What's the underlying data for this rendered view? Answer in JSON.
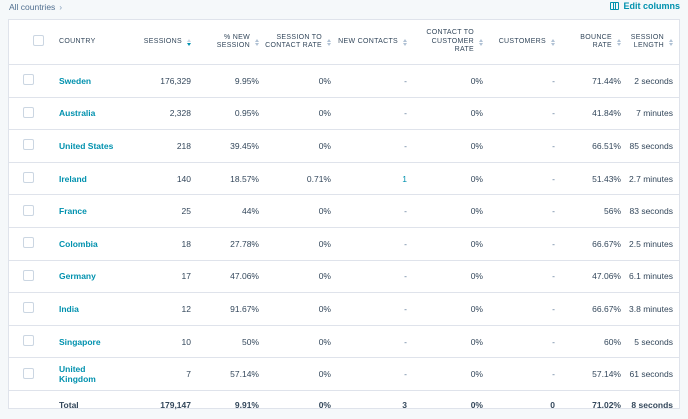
{
  "breadcrumb": {
    "label": "All countries"
  },
  "toolbar": {
    "edit_columns_label": "Edit columns"
  },
  "table": {
    "columns": [
      {
        "key": "country",
        "label": "COUNTRY"
      },
      {
        "key": "sessions",
        "label": "SESSIONS"
      },
      {
        "key": "pct_new",
        "label": "% NEW SESSION"
      },
      {
        "key": "s2c",
        "label": "SESSION TO CONTACT RATE"
      },
      {
        "key": "new_contacts",
        "label": "NEW CONTACTS"
      },
      {
        "key": "c2c",
        "label": "CONTACT TO CUSTOMER RATE"
      },
      {
        "key": "customers",
        "label": "CUSTOMERS"
      },
      {
        "key": "bounce",
        "label": "BOUNCE RATE"
      },
      {
        "key": "length",
        "label": "SESSION LENGTH"
      }
    ],
    "rows": [
      {
        "country": "Sweden",
        "sessions": "176,329",
        "pct_new": "9.95%",
        "s2c": "0%",
        "new_contacts": "-",
        "c2c": "0%",
        "customers": "-",
        "bounce": "71.44%",
        "length": "2 seconds"
      },
      {
        "country": "Australia",
        "sessions": "2,328",
        "pct_new": "0.95%",
        "s2c": "0%",
        "new_contacts": "-",
        "c2c": "0%",
        "customers": "-",
        "bounce": "41.84%",
        "length": "7 minutes"
      },
      {
        "country": "United States",
        "sessions": "218",
        "pct_new": "39.45%",
        "s2c": "0%",
        "new_contacts": "-",
        "c2c": "0%",
        "customers": "-",
        "bounce": "66.51%",
        "length": "85 seconds"
      },
      {
        "country": "Ireland",
        "sessions": "140",
        "pct_new": "18.57%",
        "s2c": "0.71%",
        "new_contacts": "1",
        "c2c": "0%",
        "customers": "-",
        "bounce": "51.43%",
        "length": "2.7 minutes"
      },
      {
        "country": "France",
        "sessions": "25",
        "pct_new": "44%",
        "s2c": "0%",
        "new_contacts": "-",
        "c2c": "0%",
        "customers": "-",
        "bounce": "56%",
        "length": "83 seconds"
      },
      {
        "country": "Colombia",
        "sessions": "18",
        "pct_new": "27.78%",
        "s2c": "0%",
        "new_contacts": "-",
        "c2c": "0%",
        "customers": "-",
        "bounce": "66.67%",
        "length": "2.5 minutes"
      },
      {
        "country": "Germany",
        "sessions": "17",
        "pct_new": "47.06%",
        "s2c": "0%",
        "new_contacts": "-",
        "c2c": "0%",
        "customers": "-",
        "bounce": "47.06%",
        "length": "6.1 minutes"
      },
      {
        "country": "India",
        "sessions": "12",
        "pct_new": "91.67%",
        "s2c": "0%",
        "new_contacts": "-",
        "c2c": "0%",
        "customers": "-",
        "bounce": "66.67%",
        "length": "3.8 minutes"
      },
      {
        "country": "Singapore",
        "sessions": "10",
        "pct_new": "50%",
        "s2c": "0%",
        "new_contacts": "-",
        "c2c": "0%",
        "customers": "-",
        "bounce": "60%",
        "length": "5 seconds"
      },
      {
        "country": "United Kingdom",
        "sessions": "7",
        "pct_new": "57.14%",
        "s2c": "0%",
        "new_contacts": "-",
        "c2c": "0%",
        "customers": "-",
        "bounce": "57.14%",
        "length": "61 seconds"
      }
    ],
    "total": {
      "country": "Total",
      "sessions": "179,147",
      "pct_new": "9.91%",
      "s2c": "0%",
      "new_contacts": "3",
      "c2c": "0%",
      "customers": "0",
      "bounce": "71.02%",
      "length": "8 seconds"
    }
  }
}
